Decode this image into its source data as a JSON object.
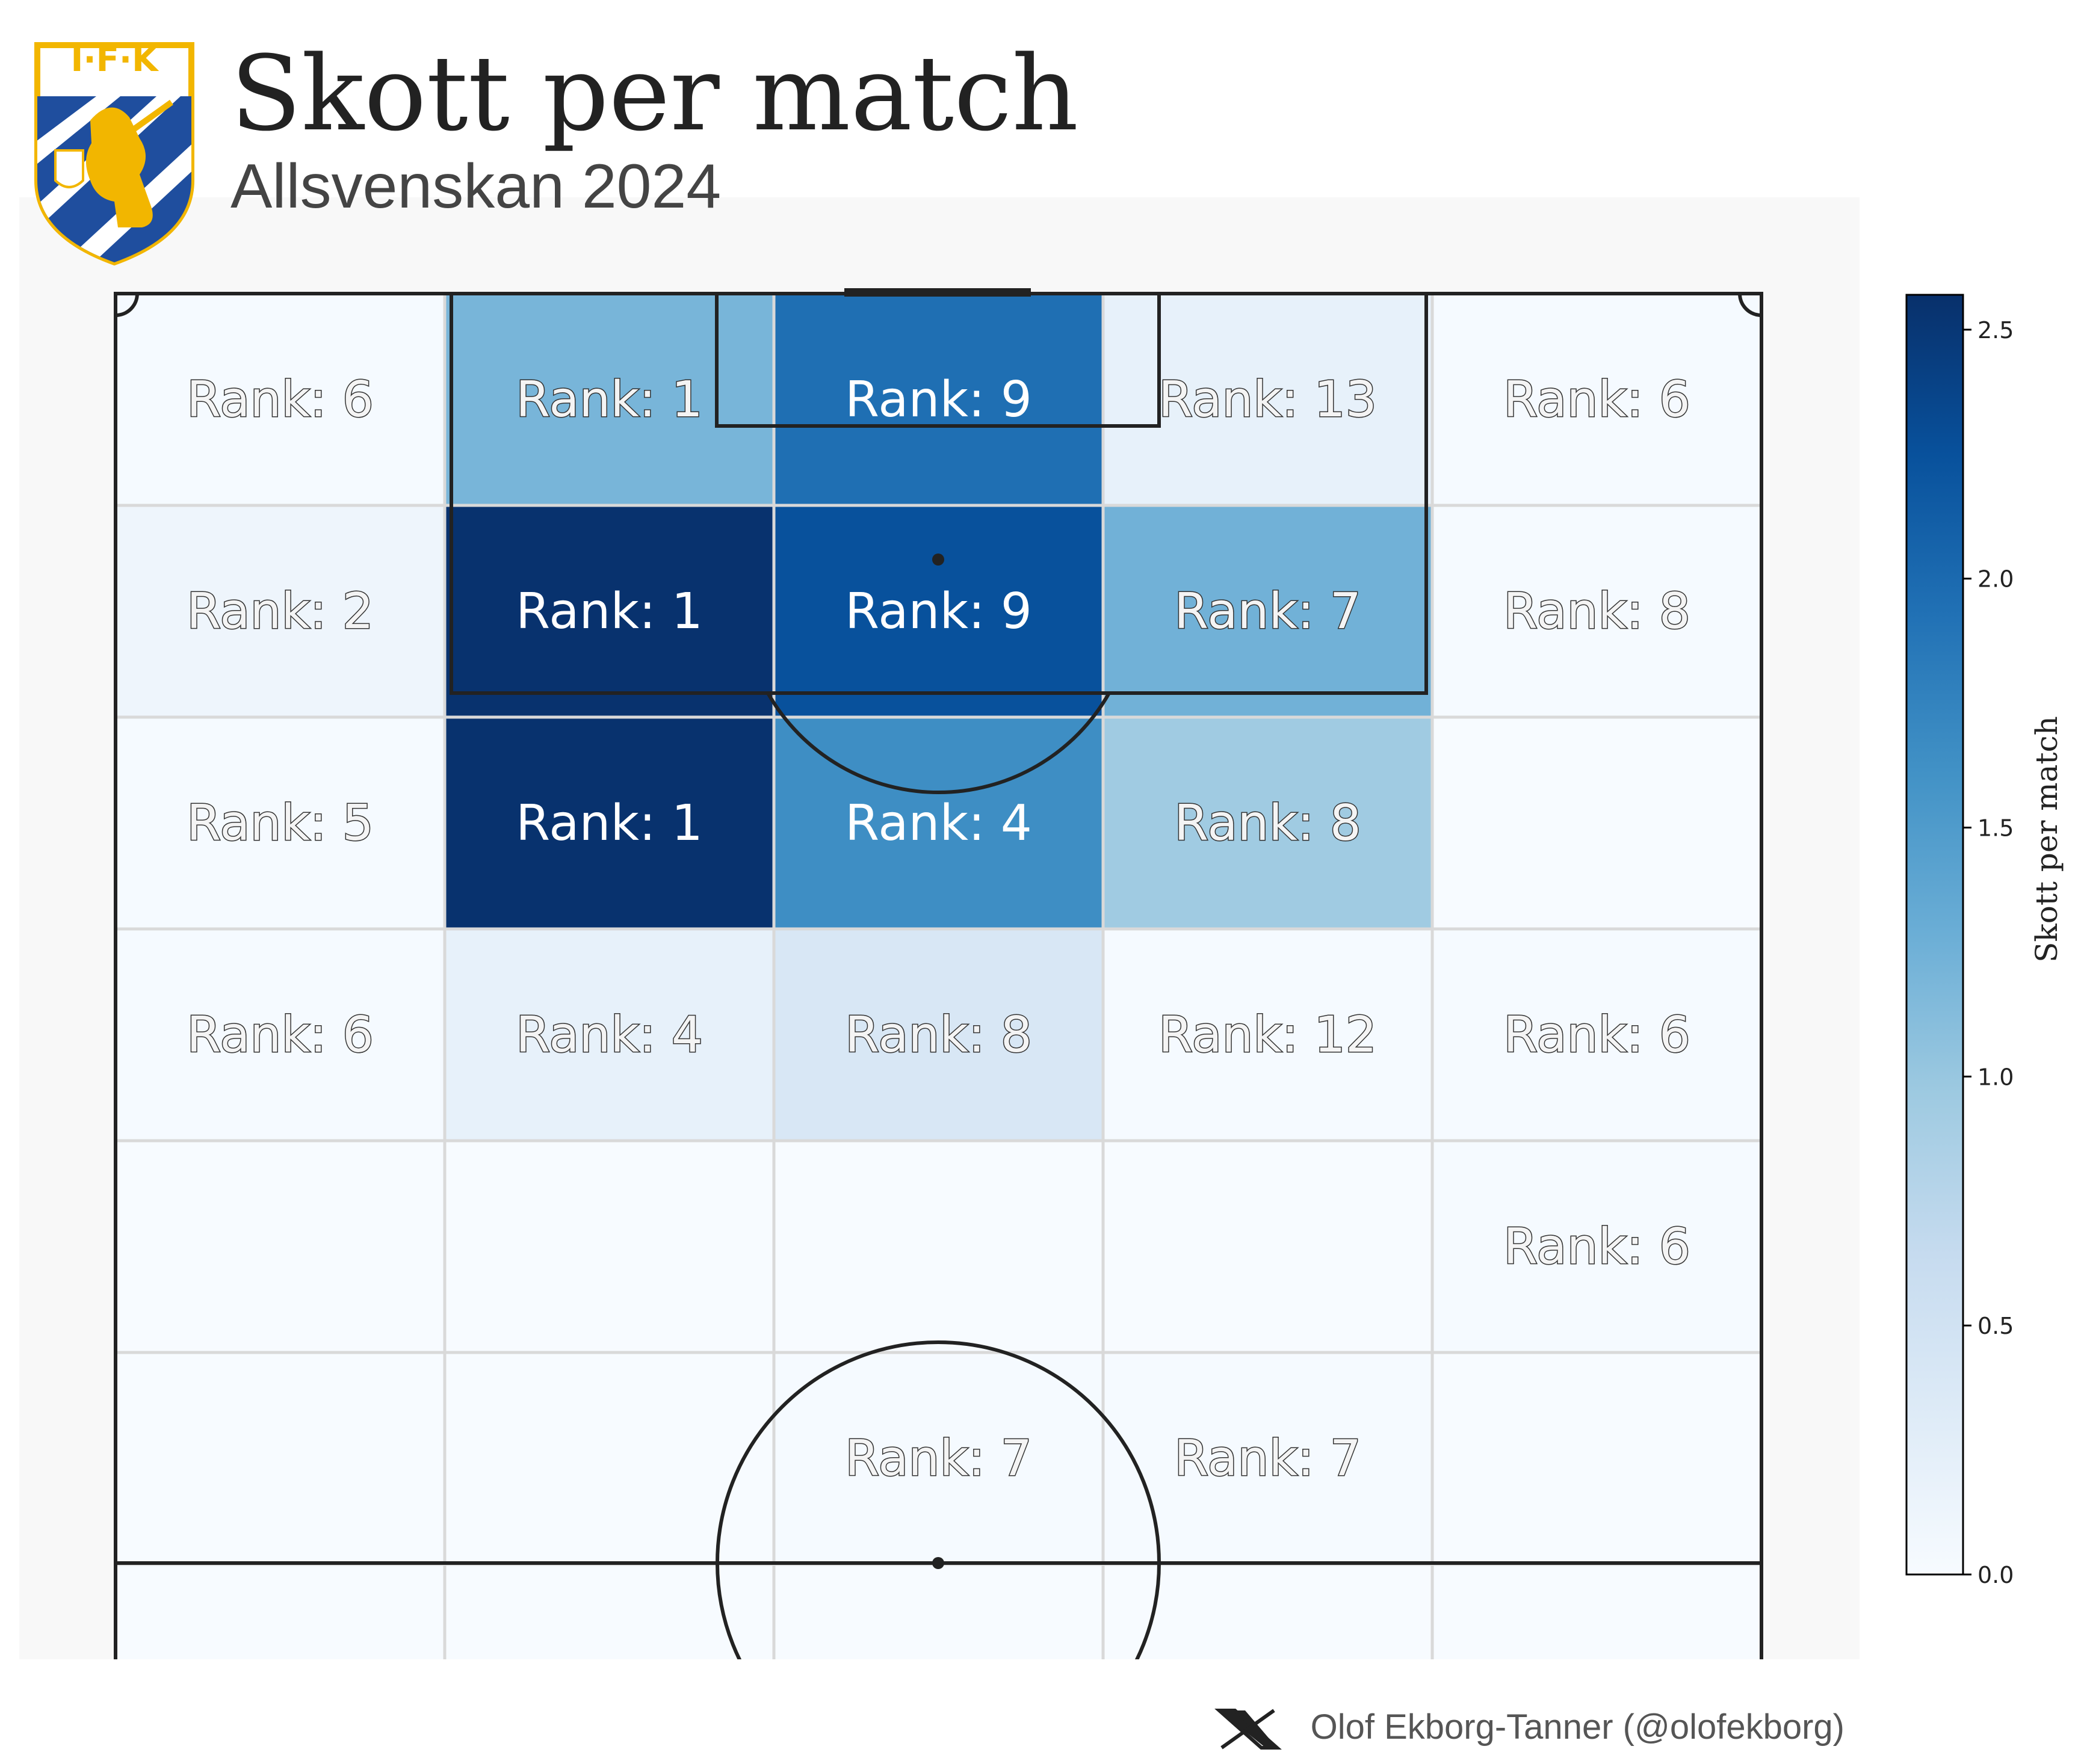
{
  "header": {
    "title": "Skott per match",
    "subtitle": "Allsvenskan 2024",
    "logo_text": "I·F·K"
  },
  "footer": {
    "credit": "Olof Ekborg-Tanner (@olofekborg)",
    "social_icon": "x-logo-icon"
  },
  "colors": {
    "cmap": [
      "#f7fbff",
      "#deebf7",
      "#c6dbef",
      "#9ecae1",
      "#6baed6",
      "#4292c6",
      "#2171b5",
      "#08519c",
      "#08306b"
    ],
    "pitch_line": "#222222",
    "grid_line": "#d9d9d9",
    "panel_bg": "#f8f8f8",
    "logo_blue": "#1f4e9e",
    "logo_gold": "#f2b600"
  },
  "chart_data": {
    "type": "heatmap",
    "colorbar": {
      "label": "Skott per match",
      "min": 0.0,
      "max": 2.57,
      "ticks": [
        "0.0",
        "0.5",
        "1.0",
        "1.5",
        "2.0",
        "2.5"
      ]
    },
    "rows": [
      [
        {
          "value": 0.02,
          "label": "Rank: 6"
        },
        {
          "value": 1.2,
          "label": "Rank: 1"
        },
        {
          "value": 1.95,
          "label": "Rank: 9"
        },
        {
          "value": 0.2,
          "label": "Rank: 13"
        },
        {
          "value": 0.02,
          "label": "Rank: 6"
        }
      ],
      [
        {
          "value": 0.12,
          "label": "Rank: 2"
        },
        {
          "value": 2.55,
          "label": "Rank: 1"
        },
        {
          "value": 2.25,
          "label": "Rank: 9"
        },
        {
          "value": 1.25,
          "label": "Rank: 7"
        },
        {
          "value": 0.02,
          "label": "Rank: 8"
        }
      ],
      [
        {
          "value": 0.02,
          "label": "Rank: 5"
        },
        {
          "value": 2.55,
          "label": "Rank: 1"
        },
        {
          "value": 1.65,
          "label": "Rank: 4"
        },
        {
          "value": 0.95,
          "label": "Rank: 8"
        },
        {
          "value": 0.0,
          "label": ""
        }
      ],
      [
        {
          "value": 0.02,
          "label": "Rank: 6"
        },
        {
          "value": 0.2,
          "label": "Rank: 4"
        },
        {
          "value": 0.4,
          "label": "Rank: 8"
        },
        {
          "value": 0.02,
          "label": "Rank: 12"
        },
        {
          "value": 0.02,
          "label": "Rank: 6"
        }
      ],
      [
        {
          "value": 0.0,
          "label": ""
        },
        {
          "value": 0.0,
          "label": ""
        },
        {
          "value": 0.0,
          "label": ""
        },
        {
          "value": 0.0,
          "label": ""
        },
        {
          "value": 0.02,
          "label": "Rank: 6"
        }
      ],
      [
        {
          "value": 0.0,
          "label": ""
        },
        {
          "value": 0.0,
          "label": ""
        },
        {
          "value": 0.02,
          "label": "Rank: 7"
        },
        {
          "value": 0.02,
          "label": "Rank: 7"
        },
        {
          "value": 0.0,
          "label": ""
        }
      ],
      [
        {
          "value": 0.0,
          "label": ""
        },
        {
          "value": 0.0,
          "label": ""
        },
        {
          "value": 0.0,
          "label": ""
        },
        {
          "value": 0.0,
          "label": ""
        },
        {
          "value": 0.0,
          "label": ""
        }
      ]
    ]
  }
}
